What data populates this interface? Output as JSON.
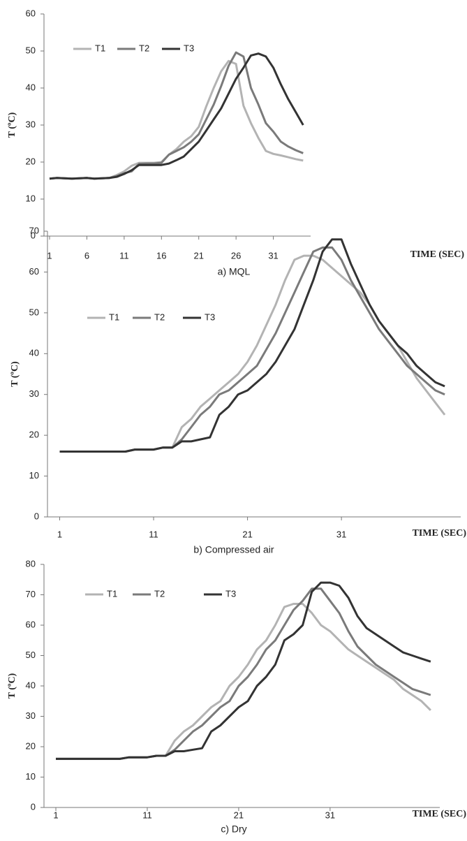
{
  "chart_data": [
    {
      "type": "line",
      "title": "a) MQL",
      "xlabel": "TIME (SEC)",
      "ylabel": "T (ºC)",
      "legend": "upper left",
      "grid": false,
      "x": [
        1,
        2,
        3,
        4,
        5,
        6,
        7,
        8,
        9,
        10,
        11,
        12,
        13,
        14,
        15,
        16,
        17,
        18,
        19,
        20,
        21,
        22,
        23,
        24,
        25,
        26,
        27,
        28,
        29,
        30,
        31,
        32,
        33,
        34,
        35
      ],
      "xlim": [
        0.25,
        36
      ],
      "xticks": [
        1,
        6,
        11,
        16,
        21,
        26,
        31
      ],
      "ylim": [
        0,
        60
      ],
      "yticks": [
        0,
        10,
        20,
        30,
        40,
        50,
        60
      ],
      "series": [
        {
          "name": "T1",
          "color": "#b3b3b3",
          "values": [
            15.5,
            15.7,
            15.6,
            15.5,
            15.6,
            15.7,
            15.5,
            15.6,
            15.7,
            16.5,
            17.5,
            19,
            19.8,
            19.8,
            19.8,
            20,
            22,
            23.5,
            25.5,
            27,
            29.5,
            35,
            40,
            44.5,
            47.3,
            46.5,
            35.2,
            30.5,
            26.5,
            23,
            22.2,
            21.8,
            21.3,
            20.8,
            20.4
          ]
        },
        {
          "name": "T2",
          "color": "#7a7a7a",
          "values": [
            15.5,
            15.7,
            15.6,
            15.5,
            15.6,
            15.7,
            15.5,
            15.6,
            15.7,
            16.2,
            17,
            17.5,
            19.5,
            19.6,
            19.6,
            19.8,
            22,
            23,
            24,
            25.5,
            27.5,
            31.5,
            35.5,
            40.5,
            46,
            49.6,
            48.5,
            40,
            35.5,
            30.5,
            28.2,
            25.5,
            24.2,
            23.2,
            22.4
          ]
        },
        {
          "name": "T3",
          "color": "#333333",
          "values": [
            15.5,
            15.7,
            15.6,
            15.5,
            15.6,
            15.7,
            15.5,
            15.6,
            15.7,
            16,
            16.8,
            17.8,
            19.2,
            19.2,
            19.2,
            19.2,
            19.6,
            20.5,
            21.5,
            23.5,
            25.5,
            28.5,
            31.5,
            34.5,
            38.5,
            42.5,
            45.5,
            48.8,
            49.3,
            48.5,
            45.5,
            41,
            37,
            33.5,
            30
          ]
        }
      ]
    },
    {
      "type": "line",
      "title": "b) Compressed air",
      "xlabel": "TIME (SEC)",
      "ylabel": "T (ºC)",
      "legend": "upper left",
      "grid": false,
      "x": [
        1,
        2,
        3,
        4,
        5,
        6,
        7,
        8,
        9,
        10,
        11,
        12,
        13,
        14,
        15,
        16,
        17,
        18,
        19,
        20,
        21,
        22,
        23,
        24,
        25,
        26,
        27,
        28,
        29,
        30,
        31,
        32,
        33,
        34,
        35,
        36,
        37,
        38,
        39,
        40,
        41,
        42
      ],
      "xlim": [
        -0.3,
        43.7
      ],
      "xticks": [
        1,
        11,
        21,
        31
      ],
      "ylim": [
        0,
        70
      ],
      "yticks": [
        0,
        10,
        20,
        30,
        40,
        50,
        60,
        70
      ],
      "series": [
        {
          "name": "T1",
          "color": "#b3b3b3",
          "values": [
            16,
            16,
            16,
            16,
            16,
            16,
            16,
            16,
            16.5,
            16.5,
            16.5,
            17,
            17,
            22,
            24,
            27,
            29,
            31,
            33,
            35,
            38,
            42,
            47,
            52,
            58,
            63,
            64,
            64,
            63,
            61,
            59,
            57,
            55,
            52,
            48,
            45,
            42,
            38,
            34,
            31,
            28,
            25
          ]
        },
        {
          "name": "T2",
          "color": "#7a7a7a",
          "values": [
            16,
            16,
            16,
            16,
            16,
            16,
            16,
            16,
            16.5,
            16.5,
            16.5,
            17,
            17,
            19,
            22,
            25,
            27,
            30,
            31,
            33,
            35,
            37,
            41,
            45,
            50,
            55,
            60,
            65,
            66,
            66,
            63,
            58,
            54,
            50,
            46,
            43,
            40,
            37,
            35,
            33,
            31,
            30
          ]
        },
        {
          "name": "T3",
          "color": "#333333",
          "values": [
            16,
            16,
            16,
            16,
            16,
            16,
            16,
            16,
            16.5,
            16.5,
            16.5,
            17,
            17,
            18.5,
            18.5,
            19,
            19.5,
            25,
            27,
            30,
            31,
            33,
            35,
            38,
            42,
            46,
            52,
            58,
            65,
            68,
            68,
            62,
            57,
            52,
            48,
            45,
            42,
            40,
            37,
            35,
            33,
            32
          ]
        }
      ]
    },
    {
      "type": "line",
      "title": "c) Dry",
      "xlabel": "TIME (SEC)",
      "ylabel": "T (ºC)",
      "legend": "upper left",
      "grid": false,
      "x": [
        1,
        2,
        3,
        4,
        5,
        6,
        7,
        8,
        9,
        10,
        11,
        12,
        13,
        14,
        15,
        16,
        17,
        18,
        19,
        20,
        21,
        22,
        23,
        24,
        25,
        26,
        27,
        28,
        29,
        30,
        31,
        32,
        33,
        34,
        35,
        36,
        37,
        38,
        39,
        40,
        41,
        42
      ],
      "xlim": [
        -0.3,
        43
      ],
      "xticks": [
        1,
        11,
        21,
        31
      ],
      "ylim": [
        0,
        80
      ],
      "yticks": [
        0,
        10,
        20,
        30,
        40,
        50,
        60,
        70,
        80
      ],
      "series": [
        {
          "name": "T1",
          "color": "#b3b3b3",
          "values": [
            16,
            16,
            16,
            16,
            16,
            16,
            16,
            16,
            16.5,
            16.5,
            16.5,
            17,
            17,
            22,
            25,
            27,
            30,
            33,
            35,
            40,
            43,
            47,
            52,
            55,
            60,
            66,
            67,
            67,
            64,
            60,
            58,
            55,
            52,
            50,
            48,
            46,
            44,
            42,
            39,
            37,
            35,
            32
          ]
        },
        {
          "name": "T2",
          "color": "#7a7a7a",
          "values": [
            16,
            16,
            16,
            16,
            16,
            16,
            16,
            16,
            16.5,
            16.5,
            16.5,
            17,
            17,
            19,
            22,
            25,
            27,
            30,
            33,
            35,
            40,
            43,
            47,
            52,
            55,
            60,
            65,
            68,
            72,
            72,
            68,
            64,
            58,
            53,
            50,
            47,
            45,
            43,
            41,
            39,
            38,
            37
          ]
        },
        {
          "name": "T3",
          "color": "#333333",
          "values": [
            16,
            16,
            16,
            16,
            16,
            16,
            16,
            16,
            16.5,
            16.5,
            16.5,
            17,
            17,
            18.5,
            18.5,
            19,
            19.5,
            25,
            27,
            30,
            33,
            35,
            40,
            43,
            47,
            55,
            57,
            60,
            71,
            74,
            74,
            73,
            69,
            63,
            59,
            57,
            55,
            53,
            51,
            50,
            49,
            48
          ]
        }
      ]
    }
  ]
}
